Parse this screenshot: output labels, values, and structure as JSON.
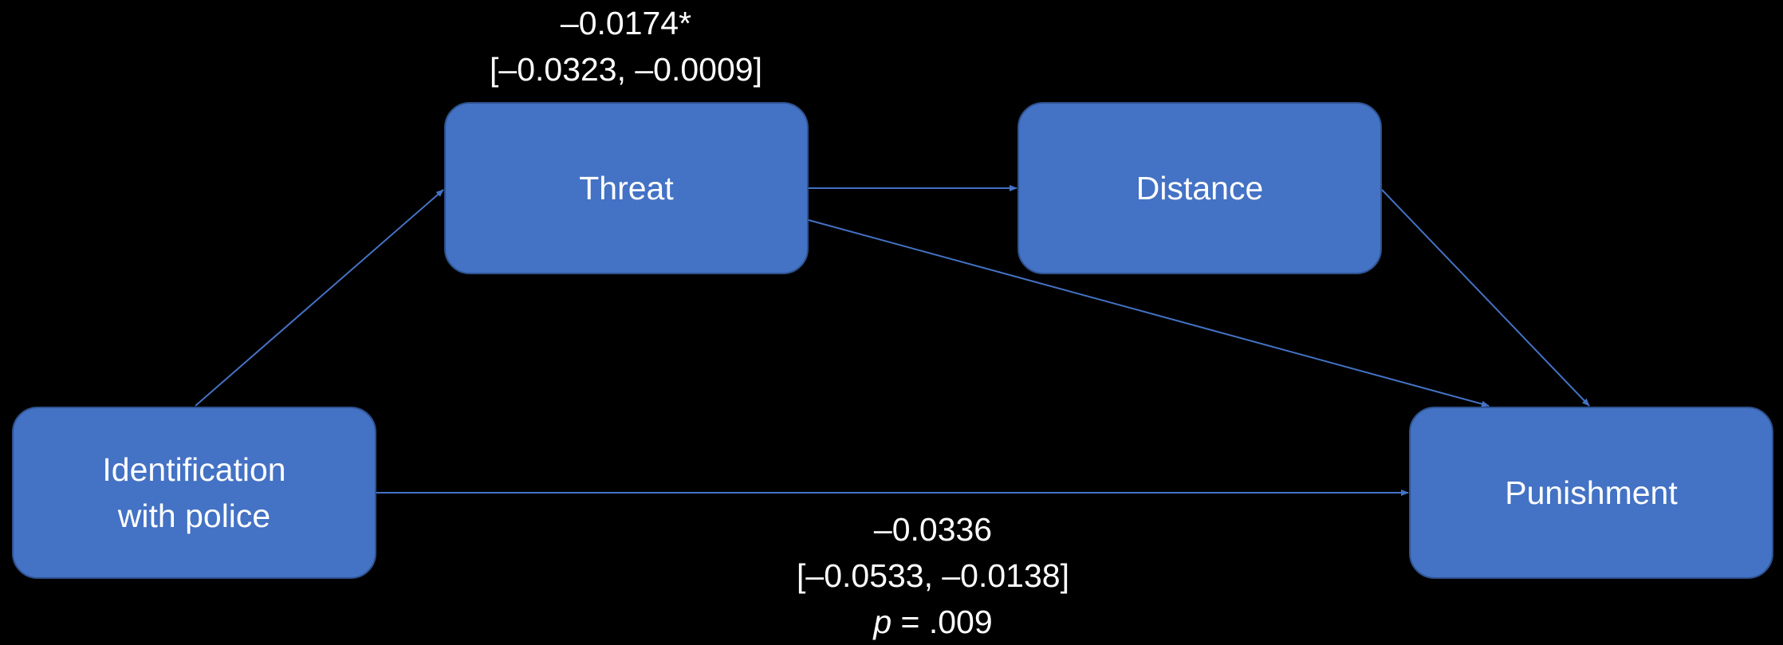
{
  "colors": {
    "background": "#000000",
    "node_fill": "#4472C4",
    "node_border": "#2F528F",
    "arrow": "#4472C4",
    "text": "#FFFFFF"
  },
  "nodes": {
    "threat": "Threat",
    "distance": "Distance",
    "identification": [
      "Identification",
      "with police"
    ],
    "punishment": "Punishment"
  },
  "paths": {
    "identification_to_threat": {
      "estimate": "–0.0174*",
      "ci": "[–0.0323, –0.0009]"
    },
    "identification_to_punishment": {
      "estimate": "–0.0336",
      "ci": "[–0.0533, –0.0138]",
      "p_symbol": "p",
      "p_value": " = .009"
    }
  },
  "edges": [
    {
      "from": "identification",
      "to": "threat"
    },
    {
      "from": "threat",
      "to": "distance"
    },
    {
      "from": "threat",
      "to": "punishment"
    },
    {
      "from": "distance",
      "to": "punishment"
    },
    {
      "from": "identification",
      "to": "punishment"
    }
  ]
}
